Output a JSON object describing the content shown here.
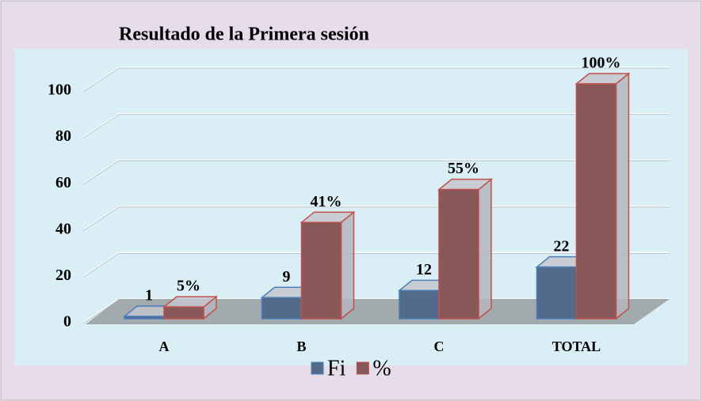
{
  "chart_data": {
    "type": "bar3d",
    "title": "Resultado de la Primera sesión",
    "categories": [
      "A",
      "B",
      "C",
      "TOTAL"
    ],
    "series": [
      {
        "name": "Fi",
        "color": "#536b88",
        "edge": "#4a7ebb",
        "values": [
          1,
          9,
          12,
          22
        ]
      },
      {
        "name": "%",
        "color": "#885858",
        "edge": "#c0504d",
        "values": [
          5,
          41,
          55,
          100
        ],
        "value_labels": [
          "5%",
          "41%",
          "55%",
          "100%"
        ]
      }
    ],
    "ylim": [
      0,
      100
    ],
    "yticks": [
      0,
      20,
      40,
      60,
      80,
      100
    ],
    "grid": true,
    "legend": "bottom"
  }
}
